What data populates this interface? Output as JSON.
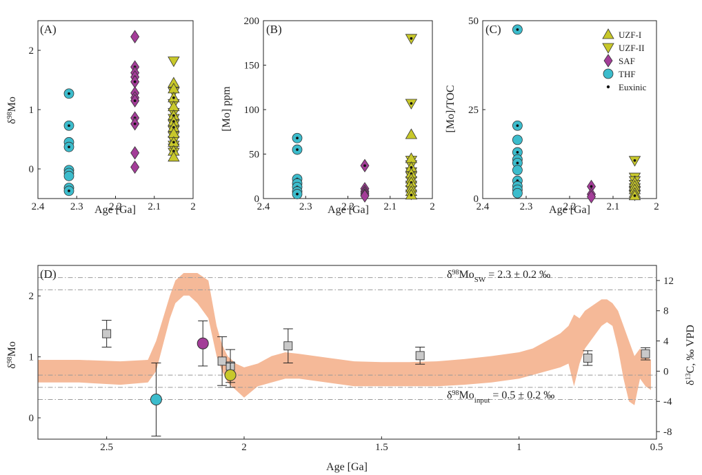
{
  "colors": {
    "UZF-I": "#c8c82a",
    "UZF-II": "#c8c82a",
    "SAF": "#a33d98",
    "THF": "#3cbccc",
    "euxinic": "#111111",
    "literature": "#c9c9c9",
    "carbon_band": "#f5b998",
    "refline": "#999999"
  },
  "chart_data": [
    {
      "type": "scatter",
      "panel": "A",
      "panel_label": "(A)",
      "xlabel": "Age [Ga]",
      "ylabel": "δ98Mo",
      "xlim": [
        2.4,
        2.0
      ],
      "ylim": [
        -0.5,
        2.5
      ],
      "xticks": [
        "2.4",
        "2.3",
        "2.2",
        "2.1",
        "2"
      ],
      "yticks": [
        "0",
        "1",
        "2"
      ],
      "series": [
        {
          "group": "THF",
          "x": [
            2.32,
            2.32,
            2.32,
            2.32,
            2.32,
            2.32,
            2.32,
            2.32,
            2.32
          ],
          "y": [
            1.27,
            0.73,
            0.45,
            0.37,
            -0.02,
            -0.07,
            -0.12,
            -0.32,
            -0.37
          ],
          "euxinic": [
            1,
            1,
            0,
            1,
            0,
            1,
            0,
            0,
            1
          ]
        },
        {
          "group": "SAF",
          "x": [
            2.15,
            2.15,
            2.15,
            2.15,
            2.15,
            2.15,
            2.15,
            2.15,
            2.15,
            2.15,
            2.15,
            2.15
          ],
          "y": [
            2.23,
            1.72,
            1.62,
            1.55,
            1.47,
            1.28,
            1.2,
            1.15,
            0.86,
            0.76,
            0.27,
            0.03
          ],
          "euxinic": [
            0,
            1,
            1,
            1,
            1,
            0,
            1,
            1,
            1,
            1,
            0,
            0
          ]
        },
        {
          "group": "UZF-II",
          "x": [
            2.05,
            2.05,
            2.05,
            2.05,
            2.05,
            2.05,
            2.05,
            2.05,
            2.05,
            2.05,
            2.05,
            2.05
          ],
          "y": [
            1.82,
            1.3,
            1.1,
            0.95,
            0.85,
            0.75,
            0.65,
            0.55,
            0.48,
            0.4,
            0.35,
            0.28
          ],
          "euxinic": [
            0,
            0,
            1,
            0,
            1,
            1,
            0,
            1,
            1,
            0,
            1,
            0
          ]
        },
        {
          "group": "UZF-I",
          "x": [
            2.05,
            2.05,
            2.05,
            2.05,
            2.05,
            2.05,
            2.05,
            2.05,
            2.05,
            2.05,
            2.05
          ],
          "y": [
            1.45,
            1.35,
            1.2,
            1.05,
            0.9,
            0.8,
            0.7,
            0.6,
            0.45,
            0.3,
            0.2
          ],
          "euxinic": [
            0,
            0,
            1,
            0,
            1,
            1,
            1,
            0,
            1,
            1,
            0
          ]
        }
      ]
    },
    {
      "type": "scatter",
      "panel": "B",
      "panel_label": "(B)",
      "xlabel": "Age [Ga]",
      "ylabel": "[Mo] ppm",
      "xlim": [
        2.4,
        2.0
      ],
      "ylim": [
        0,
        200
      ],
      "xticks": [
        "2.4",
        "2.3",
        "2.2",
        "2.1",
        "2"
      ],
      "yticks": [
        "0",
        "50",
        "100",
        "150",
        "200"
      ],
      "series": [
        {
          "group": "THF",
          "x": [
            2.32,
            2.32,
            2.32,
            2.32,
            2.32,
            2.32,
            2.32
          ],
          "y": [
            68,
            55,
            22,
            17,
            13,
            8,
            5
          ],
          "euxinic": [
            1,
            1,
            1,
            0,
            1,
            0,
            1
          ]
        },
        {
          "group": "SAF",
          "x": [
            2.16,
            2.16,
            2.16,
            2.16,
            2.16,
            2.16
          ],
          "y": [
            37,
            11,
            8,
            6,
            4,
            3
          ],
          "euxinic": [
            1,
            1,
            1,
            0,
            1,
            0
          ]
        },
        {
          "group": "UZF-II",
          "x": [
            2.05,
            2.05,
            2.05,
            2.05,
            2.05,
            2.05,
            2.05,
            2.05,
            2.05,
            2.05
          ],
          "y": [
            180,
            107,
            43,
            38,
            30,
            25,
            20,
            15,
            10,
            5
          ],
          "euxinic": [
            1,
            1,
            1,
            1,
            0,
            1,
            0,
            1,
            1,
            1
          ]
        },
        {
          "group": "UZF-I",
          "x": [
            2.05,
            2.05,
            2.05,
            2.05,
            2.05,
            2.05,
            2.05,
            2.05,
            2.05
          ],
          "y": [
            72,
            45,
            35,
            28,
            22,
            18,
            12,
            8,
            4
          ],
          "euxinic": [
            0,
            0,
            1,
            1,
            0,
            1,
            1,
            0,
            1
          ]
        }
      ]
    },
    {
      "type": "scatter",
      "panel": "C",
      "panel_label": "(C)",
      "xlabel": "Age [Ga]",
      "ylabel": "[Mo]/TOC",
      "xlim": [
        2.4,
        2.0
      ],
      "ylim": [
        0,
        50
      ],
      "xticks": [
        "2.4",
        "2.3",
        "2.2",
        "2.1",
        "2"
      ],
      "yticks": [
        "0",
        "25",
        "50"
      ],
      "legend": [
        "UZF-I",
        "UZF-II",
        "SAF",
        "THF",
        "Euxinic"
      ],
      "series": [
        {
          "group": "THF",
          "x": [
            2.32,
            2.32,
            2.32,
            2.32,
            2.32,
            2.32,
            2.32,
            2.32,
            2.32,
            2.32,
            2.32
          ],
          "y": [
            47.5,
            20.5,
            16.5,
            13,
            11,
            10,
            8,
            5,
            3.5,
            2.5,
            1.5
          ],
          "euxinic": [
            1,
            1,
            0,
            1,
            1,
            1,
            0,
            1,
            0,
            1,
            0
          ]
        },
        {
          "group": "SAF",
          "x": [
            2.15,
            2.15,
            2.15
          ],
          "y": [
            3.4,
            1.2,
            0.5
          ],
          "euxinic": [
            1,
            1,
            0
          ]
        },
        {
          "group": "UZF-II",
          "x": [
            2.05,
            2.05,
            2.05,
            2.05,
            2.05,
            2.05,
            2.05
          ],
          "y": [
            10.7,
            6,
            5,
            4,
            3,
            2,
            1
          ],
          "euxinic": [
            1,
            1,
            0,
            1,
            1,
            0,
            1
          ]
        },
        {
          "group": "UZF-I",
          "x": [
            2.05,
            2.05,
            2.05,
            2.05,
            2.05
          ],
          "y": [
            4.5,
            3.5,
            2.5,
            1.5,
            0.8
          ],
          "euxinic": [
            0,
            1,
            1,
            0,
            1
          ]
        }
      ]
    },
    {
      "type": "scatter",
      "panel": "D",
      "panel_label": "(D)",
      "xlabel": "Age [Ga]",
      "ylabel": "δ98Mo",
      "y2label": "δ13C, ‰ VPD",
      "xlim": [
        2.75,
        0.5
      ],
      "ylim": [
        -0.35,
        2.5
      ],
      "y2lim": [
        -9,
        14
      ],
      "xticks": [
        "2.5",
        "2",
        "1.5",
        "1",
        "0.5"
      ],
      "yticks": [
        "0",
        "1",
        "2"
      ],
      "y2ticks": [
        "12",
        "8",
        "4",
        "0",
        "-4",
        "-8"
      ],
      "reference_lines": [
        {
          "label": "δ98Mo_SW = 2.3 ± 0.2 ‰",
          "lines": [
            2.5,
            2.3,
            2.1
          ]
        },
        {
          "label": "δ98Mo_input = 0.5 ± 0.2 ‰",
          "lines": [
            0.7,
            0.5,
            0.3
          ]
        }
      ],
      "annotation_sw": {
        "prefix": "δ",
        "sup": "98",
        "main": "Mo",
        "sub": "SW",
        "rest": " = 2.3 ± 0.2 ‰"
      },
      "annotation_input": {
        "prefix": "δ",
        "sup": "98",
        "main": "Mo",
        "sub": "input",
        "rest": " = 0.5 ± 0.2 ‰"
      },
      "this_study_means": [
        {
          "group": "THF",
          "x": 2.32,
          "y": 0.3,
          "err": 0.6
        },
        {
          "group": "SAF",
          "x": 2.15,
          "y": 1.22,
          "err": 0.37
        },
        {
          "group": "UZF-II",
          "x": 2.05,
          "y": 0.7,
          "err": 0.2
        }
      ],
      "literature_means": [
        {
          "x": 2.5,
          "y": 1.38,
          "err": 0.22
        },
        {
          "x": 2.08,
          "y": 0.93,
          "err": 0.4
        },
        {
          "x": 2.05,
          "y": 0.85,
          "err": 0.27
        },
        {
          "x": 1.84,
          "y": 1.18,
          "err": 0.28
        },
        {
          "x": 1.36,
          "y": 1.02,
          "err": 0.14
        },
        {
          "x": 0.75,
          "y": 0.98,
          "err": 0.12
        },
        {
          "x": 0.54,
          "y": 1.05,
          "err": 0.1
        }
      ],
      "carbon_isotope_band": {
        "x": [
          2.75,
          2.6,
          2.45,
          2.35,
          2.32,
          2.27,
          2.25,
          2.22,
          2.2,
          2.17,
          2.13,
          2.1,
          2.08,
          2.06,
          2.03,
          2.0,
          1.95,
          1.9,
          1.85,
          1.8,
          1.7,
          1.6,
          1.5,
          1.4,
          1.3,
          1.2,
          1.1,
          1.0,
          0.95,
          0.9,
          0.85,
          0.82,
          0.8,
          0.78,
          0.76,
          0.74,
          0.72,
          0.7,
          0.68,
          0.66,
          0.64,
          0.62,
          0.6,
          0.58,
          0.56,
          0.54,
          0.52
        ],
        "top": [
          1.5,
          1.5,
          1.3,
          1.5,
          4,
          10,
          12,
          13,
          13,
          13,
          12,
          6,
          3.5,
          2,
          1,
          0.5,
          1,
          2,
          2.5,
          2.3,
          1.8,
          1.3,
          1.2,
          1.2,
          1.3,
          1.6,
          2,
          2.5,
          3,
          4,
          5,
          6,
          7.5,
          7,
          8,
          8.5,
          9,
          9.5,
          9.5,
          9,
          8,
          6,
          4,
          2,
          3,
          2,
          1.5
        ],
        "bot": [
          -1.5,
          -1.5,
          -1.8,
          -1.5,
          0,
          7,
          9,
          10,
          10,
          9,
          7,
          2,
          0,
          -1.5,
          -2.5,
          -3.5,
          -2,
          -1.5,
          -1,
          -1,
          -1.5,
          -2,
          -2,
          -2,
          -2,
          -1.8,
          -1.5,
          -1,
          -0.5,
          0,
          0.5,
          1,
          -2,
          1,
          3,
          4,
          5,
          6,
          6.5,
          6,
          3,
          -1,
          -4,
          -4.5,
          -1,
          -2,
          -2.5
        ]
      }
    }
  ]
}
